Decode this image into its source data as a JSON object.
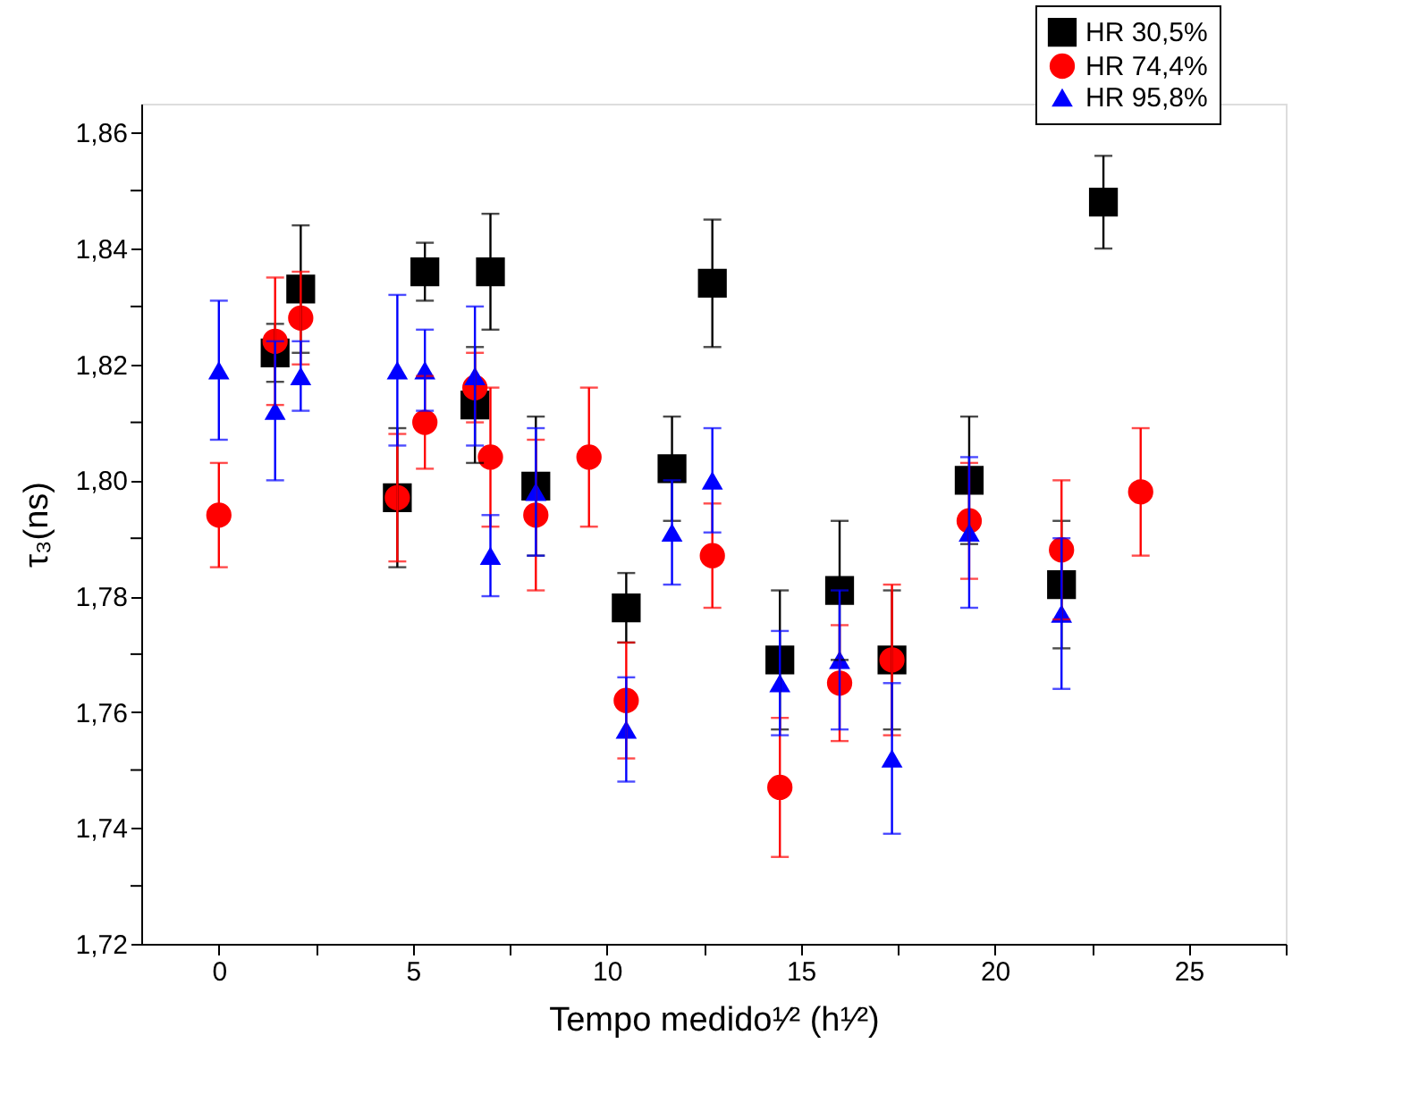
{
  "chart_data": {
    "type": "scatter",
    "xlabel": "Tempo medido¹⁄² (h¹⁄²)",
    "ylabel": "τ₃(ns)",
    "xlim": [
      -2,
      27.5
    ],
    "xticks": [
      0,
      {
        "value": 2.5,
        "label": null
      },
      5,
      {
        "value": 7.5,
        "label": null
      },
      10,
      {
        "value": 12.5,
        "label": null
      },
      15,
      {
        "value": 17.5,
        "label": null
      },
      20,
      {
        "value": 22.5,
        "label": null
      },
      25,
      {
        "value": 27.5,
        "label": null
      }
    ],
    "ylim": [
      1.72,
      1.865
    ],
    "yticks": [
      {
        "value": 1.72,
        "label": "1,72"
      },
      {
        "value": 1.73,
        "label": null
      },
      {
        "value": 1.74,
        "label": "1,74"
      },
      {
        "value": 1.75,
        "label": null
      },
      {
        "value": 1.76,
        "label": "1,76"
      },
      {
        "value": 1.77,
        "label": null
      },
      {
        "value": 1.78,
        "label": "1,78"
      },
      {
        "value": 1.79,
        "label": null
      },
      {
        "value": 1.8,
        "label": "1,80"
      },
      {
        "value": 1.81,
        "label": null
      },
      {
        "value": 1.82,
        "label": "1,82"
      },
      {
        "value": 1.83,
        "label": null
      },
      {
        "value": 1.84,
        "label": "1,84"
      },
      {
        "value": 1.85,
        "label": null
      },
      {
        "value": 1.86,
        "label": "1,86"
      }
    ],
    "grid": false,
    "legend": "top right",
    "series": [
      {
        "name": "HR 30,5%",
        "color": "#000000",
        "marker": "square",
        "x": [
          1.45,
          2.11,
          4.6,
          5.31,
          6.6,
          7.0,
          8.17,
          10.5,
          11.68,
          12.72,
          14.46,
          16.0,
          17.35,
          19.34,
          21.72,
          22.8
        ],
        "values": [
          1.822,
          1.833,
          1.797,
          1.836,
          1.813,
          1.836,
          1.799,
          1.778,
          1.802,
          1.834,
          1.769,
          1.781,
          1.769,
          1.8,
          1.782,
          1.848
        ],
        "errors": [
          0.005,
          0.011,
          0.012,
          0.005,
          0.01,
          0.01,
          0.012,
          0.006,
          0.009,
          0.011,
          0.012,
          0.012,
          0.012,
          0.011,
          0.011,
          0.008
        ]
      },
      {
        "name": "HR 74,4%",
        "color": "#ff0000",
        "marker": "circle",
        "x": [
          0,
          1.45,
          2.11,
          4.6,
          5.31,
          6.6,
          7.0,
          8.17,
          9.54,
          10.5,
          12.72,
          14.46,
          16.0,
          17.35,
          19.34,
          21.72,
          23.76
        ],
        "values": [
          1.794,
          1.824,
          1.828,
          1.797,
          1.81,
          1.816,
          1.804,
          1.794,
          1.804,
          1.762,
          1.787,
          1.747,
          1.765,
          1.769,
          1.793,
          1.788,
          1.798
        ],
        "errors": [
          0.009,
          0.011,
          0.008,
          0.011,
          0.008,
          0.006,
          0.012,
          0.013,
          0.012,
          0.01,
          0.009,
          0.012,
          0.01,
          0.013,
          0.01,
          0.012,
          0.011
        ]
      },
      {
        "name": "HR 95,8%",
        "color": "#0000ff",
        "marker": "triangle",
        "x": [
          0,
          1.45,
          2.11,
          4.6,
          5.31,
          6.6,
          7.0,
          8.17,
          10.5,
          11.68,
          12.72,
          14.46,
          16.0,
          17.35,
          19.34,
          21.72
        ],
        "values": [
          1.819,
          1.812,
          1.818,
          1.819,
          1.819,
          1.818,
          1.787,
          1.798,
          1.757,
          1.791,
          1.8,
          1.765,
          1.769,
          1.752,
          1.791,
          1.777
        ],
        "errors": [
          0.012,
          0.012,
          0.006,
          0.013,
          0.007,
          0.012,
          0.007,
          0.011,
          0.009,
          0.009,
          0.009,
          0.009,
          0.012,
          0.013,
          0.013,
          0.013
        ]
      }
    ]
  }
}
